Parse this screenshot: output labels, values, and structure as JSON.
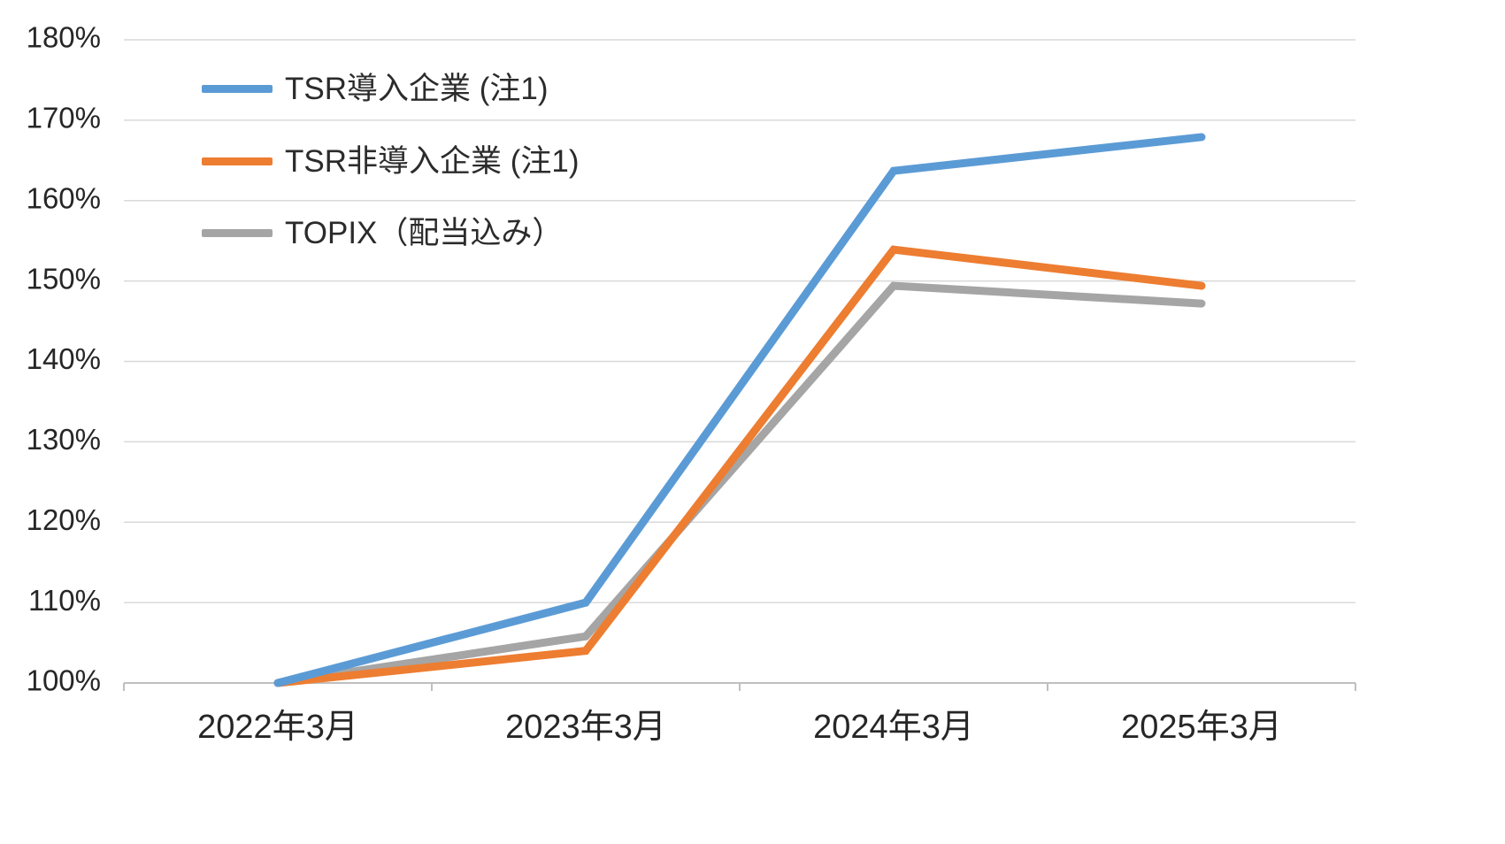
{
  "chart_data": {
    "type": "line",
    "title": "",
    "xlabel": "",
    "ylabel": "",
    "categories": [
      "2022年3月",
      "2023年3月",
      "2024年3月",
      "2025年3月"
    ],
    "series": [
      {
        "name": "TSR導入企業 (注1)",
        "color": "#5B9BD5",
        "values": [
          100,
          110.0,
          163.7,
          167.9
        ]
      },
      {
        "name": "TSR非導入企業 (注1)",
        "color": "#ED7D31",
        "values": [
          100,
          104.0,
          153.9,
          149.4
        ]
      },
      {
        "name": "TOPIX（配当込み）",
        "color": "#A5A5A5",
        "values": [
          100,
          105.8,
          149.4,
          147.2
        ]
      }
    ],
    "ylim": [
      100,
      180
    ],
    "ytick_values": [
      100,
      110,
      120,
      130,
      140,
      150,
      160,
      170,
      180
    ],
    "ytick_labels": [
      "100%",
      "110%",
      "120%",
      "130%",
      "140%",
      "150%",
      "160%",
      "170%",
      "180%"
    ],
    "grid": "horizontal",
    "legend_position": "top-left-inside",
    "gridline_color": "#D9D9D9",
    "axis_color": "#BFBFBF",
    "tick_label_color": "#262626",
    "line_width": 9
  }
}
